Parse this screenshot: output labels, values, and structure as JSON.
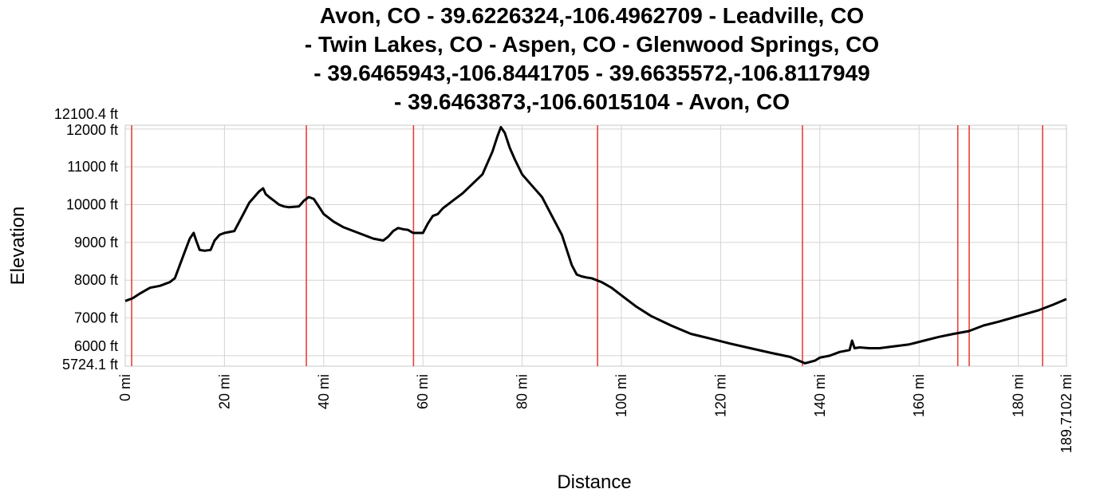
{
  "chart_data": {
    "type": "line",
    "title_lines": [
      "Avon, CO - 39.6226324,-106.4962709 - Leadville, CO",
      "- Twin Lakes, CO - Aspen, CO - Glenwood Springs, CO",
      "- 39.6465943,-106.8441705 - 39.6635572,-106.8117949",
      "- 39.6463873,-106.6015104 - Avon, CO"
    ],
    "xlabel": "Distance",
    "ylabel": "Elevation",
    "xlim": [
      0,
      189.7102
    ],
    "ylim": [
      5724.1,
      12100.4
    ],
    "x_ticks": [
      {
        "value": 0,
        "label": "0 mi"
      },
      {
        "value": 20,
        "label": "20 mi"
      },
      {
        "value": 40,
        "label": "40 mi"
      },
      {
        "value": 60,
        "label": "60 mi"
      },
      {
        "value": 80,
        "label": "80 mi"
      },
      {
        "value": 100,
        "label": "100 mi"
      },
      {
        "value": 120,
        "label": "120 mi"
      },
      {
        "value": 140,
        "label": "140 mi"
      },
      {
        "value": 160,
        "label": "160 mi"
      },
      {
        "value": 180,
        "label": "180 mi"
      },
      {
        "value": 189.7102,
        "label": "189.7102 mi"
      }
    ],
    "y_ticks": [
      {
        "value": 12100.4,
        "label": "12100.4 ft"
      },
      {
        "value": 12000,
        "label": "12000 ft"
      },
      {
        "value": 11000,
        "label": "11000 ft"
      },
      {
        "value": 10000,
        "label": "10000 ft"
      },
      {
        "value": 9000,
        "label": "9000 ft"
      },
      {
        "value": 8000,
        "label": "8000 ft"
      },
      {
        "value": 7000,
        "label": "7000 ft"
      },
      {
        "value": 6000,
        "label": "6000 ft"
      },
      {
        "value": 5724.1,
        "label": "5724.1 ft"
      }
    ],
    "waypoint_markers_mi": [
      1.3,
      36.5,
      58.1,
      95.2,
      136.5,
      167.8,
      170.1,
      184.9
    ],
    "grid": true,
    "colors": {
      "line": "#000000",
      "marker": "#e8403a",
      "grid": "#d4d4d4"
    },
    "series": [
      {
        "x": [
          0,
          1.5,
          3,
          5,
          7,
          9,
          10,
          11,
          12,
          13,
          13.8,
          14.3,
          15,
          16,
          17.2,
          18,
          19,
          20,
          22,
          24,
          25,
          26,
          27,
          27.8,
          28.3,
          29,
          30,
          31,
          32,
          33,
          34,
          35,
          36,
          37,
          38,
          39,
          40,
          42,
          44,
          46,
          48,
          50,
          52,
          53,
          54,
          55,
          56,
          57,
          58,
          59,
          60,
          61,
          62,
          63,
          64,
          66,
          68,
          70,
          72,
          74,
          75,
          75.7,
          76.5,
          77.5,
          78.5,
          80,
          82,
          84,
          86,
          88,
          89,
          90,
          91,
          92,
          93,
          94,
          95,
          96,
          98,
          100,
          103,
          106,
          110,
          114,
          118,
          122,
          126,
          130,
          134,
          137,
          139,
          140,
          142,
          144,
          146,
          146.5,
          147,
          148,
          150,
          152,
          155,
          158,
          161,
          164,
          167,
          170,
          173,
          176,
          180,
          184,
          187,
          189.7
        ],
        "y": [
          7450,
          7520,
          7650,
          7800,
          7850,
          7950,
          8050,
          8400,
          8750,
          9100,
          9250,
          9050,
          8800,
          8780,
          8800,
          9050,
          9200,
          9250,
          9300,
          9800,
          10050,
          10200,
          10350,
          10430,
          10280,
          10200,
          10100,
          10000,
          9950,
          9930,
          9940,
          9950,
          10100,
          10200,
          10150,
          9950,
          9750,
          9550,
          9400,
          9300,
          9200,
          9100,
          9050,
          9150,
          9300,
          9380,
          9350,
          9330,
          9250,
          9250,
          9250,
          9500,
          9700,
          9750,
          9900,
          10100,
          10300,
          10550,
          10800,
          11400,
          11800,
          12050,
          11900,
          11500,
          11200,
          10800,
          10500,
          10200,
          9700,
          9200,
          8800,
          8400,
          8150,
          8100,
          8070,
          8050,
          8000,
          7950,
          7800,
          7600,
          7300,
          7050,
          6800,
          6580,
          6450,
          6320,
          6200,
          6080,
          5970,
          5800,
          5870,
          5950,
          6000,
          6100,
          6150,
          6400,
          6200,
          6220,
          6200,
          6200,
          6250,
          6300,
          6400,
          6500,
          6580,
          6650,
          6800,
          6900,
          7050,
          7200,
          7350,
          7500
        ]
      }
    ]
  }
}
